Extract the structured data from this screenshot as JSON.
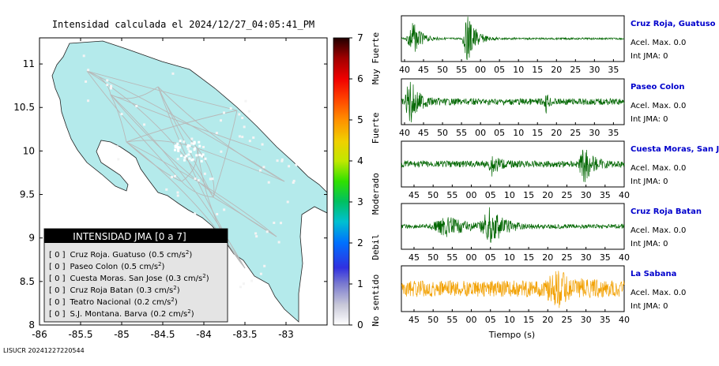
{
  "map": {
    "title": "Intensidad calculada el 2024/12/27_04:05:41_PM",
    "x_ticks": [
      "-86",
      "-85.5",
      "-85",
      "-84.5",
      "-84",
      "-83.5",
      "-83"
    ],
    "y_ticks": [
      "11",
      "10.5",
      "10",
      "9.5",
      "9",
      "8.5",
      "8"
    ],
    "xlim": [
      -86,
      -82.5
    ],
    "ylim": [
      8,
      11.3
    ],
    "land_color": "#b4eaeb",
    "footer": "LISUCR 20241227220544"
  },
  "legend": {
    "title": "INTENSIDAD JMA [0 a 7]",
    "entries": [
      {
        "jma": "[ 0 ]",
        "name": "Cruz Roja. Guatuso",
        "acc": "(0.5 cm/s",
        "sup": "2",
        ")": ")"
      },
      {
        "jma": "[ 0 ]",
        "name": "Paseo Colon",
        "acc": "(0.5 cm/s",
        "sup": "2",
        ")": ")"
      },
      {
        "jma": "[ 0 ]",
        "name": "Cuesta Moras. San Jose",
        "acc": "(0.3 cm/s",
        "sup": "2",
        ")": ")"
      },
      {
        "jma": "[ 0 ]",
        "name": "Cruz Roja Batan",
        "acc": "(0.3 cm/s",
        "sup": "2",
        ")": ")"
      },
      {
        "jma": "[ 0 ]",
        "name": "Teatro Nacional",
        "acc": "(0.2 cm/s",
        "sup": "2",
        ")": ")"
      },
      {
        "jma": "[ 0 ]",
        "name": "S.J. Montana. Barva",
        "acc": "(0.2 cm/s",
        "sup": "2",
        ")": ")"
      }
    ]
  },
  "colorbar": {
    "ticks": [
      "7",
      "6",
      "5",
      "4",
      "3",
      "2",
      "1",
      "0"
    ],
    "labels": [
      "Muy Fuerte",
      "Fuerte",
      "Moderado",
      "Debil",
      "No sentido"
    ]
  },
  "chart_data": {
    "type": "line",
    "xlabel": "Tiempo (s)",
    "series": [
      {
        "name": "Cruz Roja, Guatuso",
        "acc_label": "Acel. Max. 0.0",
        "jma_label": "Int JMA: 0",
        "color": "#006600",
        "ticks": [
          "40",
          "45",
          "50",
          "55",
          "00",
          "05",
          "10",
          "15",
          "20",
          "25",
          "30",
          "35"
        ],
        "tick_start": 40
      },
      {
        "name": "Paseo Colon",
        "acc_label": "Acel. Max. 0.0",
        "jma_label": "Int JMA: 0",
        "color": "#006600",
        "ticks": [
          "40",
          "45",
          "50",
          "55",
          "00",
          "05",
          "10",
          "15",
          "20",
          "25",
          "30",
          "35"
        ],
        "tick_start": 40
      },
      {
        "name": "Cuesta Moras, San Jose",
        "acc_label": "Acel. Max. 0.0",
        "jma_label": "Int JMA: 0",
        "color": "#006600",
        "ticks": [
          "45",
          "50",
          "55",
          "00",
          "05",
          "10",
          "15",
          "20",
          "25",
          "30",
          "35",
          "40"
        ],
        "tick_start": 45
      },
      {
        "name": "Cruz Roja Batan",
        "acc_label": "Acel. Max. 0.0",
        "jma_label": "Int JMA: 0",
        "color": "#006600",
        "ticks": [
          "45",
          "50",
          "55",
          "00",
          "05",
          "10",
          "15",
          "20",
          "25",
          "30",
          "35",
          "40"
        ],
        "tick_start": 45
      },
      {
        "name": "La Sabana",
        "acc_label": "Acel. Max. 0.0",
        "jma_label": "Int JMA: 0",
        "color": "#f2a000",
        "ticks": [
          "45",
          "50",
          "55",
          "00",
          "05",
          "10",
          "15",
          "20",
          "25",
          "30",
          "35",
          "40"
        ],
        "tick_start": 45
      }
    ]
  }
}
